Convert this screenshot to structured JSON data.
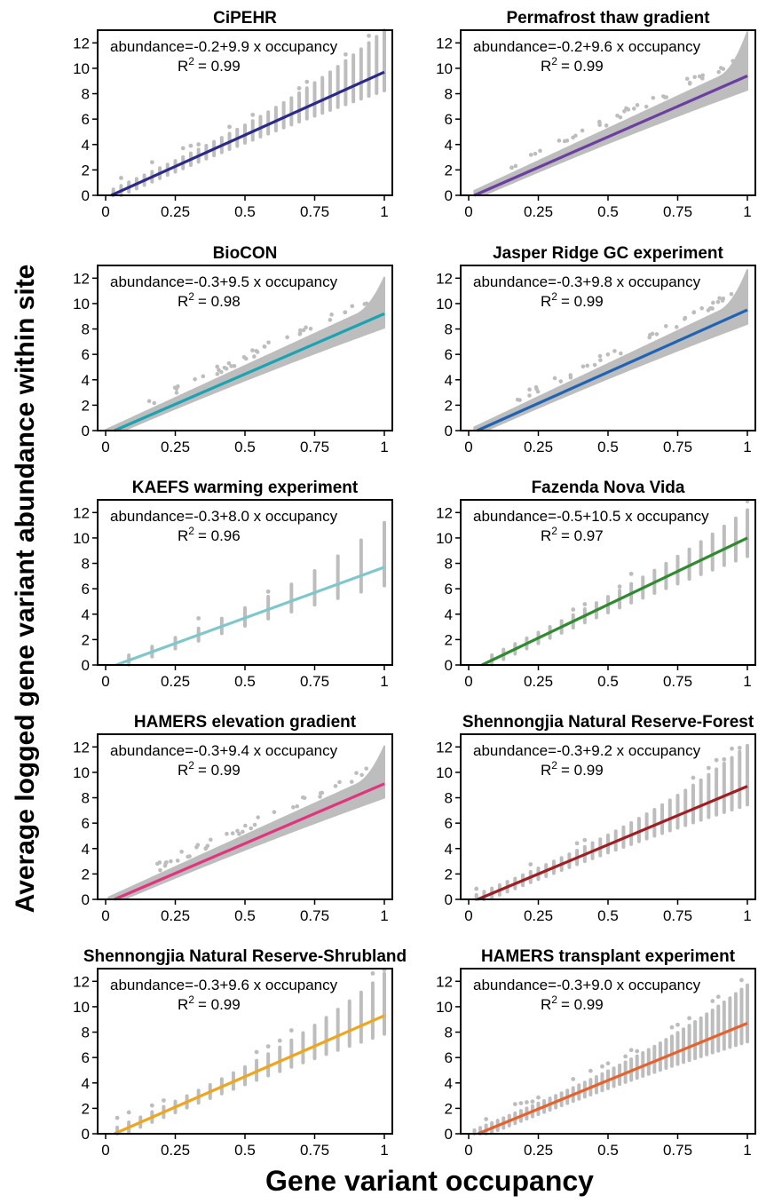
{
  "figure": {
    "ylabel": "Average logged gene variant abundance within site",
    "xlabel": "Gene variant occupancy"
  },
  "chart_data": [
    {
      "type": "scatter",
      "title": "CiPEHR",
      "equation": "abundance=-0.2+9.9 x occupancy",
      "r2_label": "R",
      "r2_value": "= 0.99",
      "intercept": -0.2,
      "slope": 9.9,
      "r2": 0.99,
      "line_color": "#2b2a8c",
      "scatter_color": "#bdbdbd",
      "xlim": [
        0,
        1
      ],
      "ylim": [
        0,
        13
      ],
      "xticks": [
        "0",
        "0.25",
        "0.5",
        "0.75",
        "1"
      ],
      "yticks": [
        "0",
        "2",
        "4",
        "6",
        "8",
        "10",
        "12"
      ],
      "occupancy_levels": 36,
      "xmin_point": 0.02,
      "max_abundance_at_1": 13.0
    },
    {
      "type": "scatter",
      "title": "Permafrost thaw gradient",
      "equation": "abundance=-0.2+9.6 x occupancy",
      "r2_label": "R",
      "r2_value": "= 0.99",
      "intercept": -0.2,
      "slope": 9.6,
      "r2": 0.99,
      "line_color": "#6b3fa0",
      "scatter_color": "#bdbdbd",
      "xlim": [
        0,
        1
      ],
      "ylim": [
        0,
        13
      ],
      "xticks": [
        "0",
        "0.25",
        "0.5",
        "0.75",
        "1"
      ],
      "yticks": [
        "0",
        "2",
        "4",
        "6",
        "8",
        "10",
        "12"
      ],
      "occupancy_levels": 0,
      "xmin_point": 0.02,
      "max_abundance_at_1": 12.8
    },
    {
      "type": "scatter",
      "title": "BioCON",
      "equation": "abundance=-0.3+9.5 x occupancy",
      "r2_label": "R",
      "r2_value": "= 0.98",
      "intercept": -0.3,
      "slope": 9.5,
      "r2": 0.98,
      "line_color": "#1aa3b3",
      "scatter_color": "#bdbdbd",
      "xlim": [
        0,
        1
      ],
      "ylim": [
        0,
        13
      ],
      "xticks": [
        "0",
        "0.25",
        "0.5",
        "0.75",
        "1"
      ],
      "yticks": [
        "0",
        "2",
        "4",
        "6",
        "8",
        "10",
        "12"
      ],
      "occupancy_levels": 0,
      "xmin_point": 0.0,
      "max_abundance_at_1": 12.0
    },
    {
      "type": "scatter",
      "title": "Jasper Ridge GC experiment",
      "equation": "abundance=-0.3+9.8 x occupancy",
      "r2_label": "R",
      "r2_value": "= 0.99",
      "intercept": -0.3,
      "slope": 9.8,
      "r2": 0.99,
      "line_color": "#1f63b4",
      "scatter_color": "#bdbdbd",
      "xlim": [
        0,
        1
      ],
      "ylim": [
        0,
        13
      ],
      "xticks": [
        "0",
        "0.25",
        "0.5",
        "0.75",
        "1"
      ],
      "yticks": [
        "0",
        "2",
        "4",
        "6",
        "8",
        "10",
        "12"
      ],
      "occupancy_levels": 0,
      "xmin_point": 0.02,
      "max_abundance_at_1": 12.6
    },
    {
      "type": "scatter",
      "title": "KAEFS warming experiment",
      "equation": "abundance=-0.3+8.0 x occupancy",
      "r2_label": "R",
      "r2_value": "= 0.96",
      "intercept": -0.3,
      "slope": 8.0,
      "r2": 0.96,
      "line_color": "#7ec8cc",
      "scatter_color": "#bdbdbd",
      "xlim": [
        0,
        1
      ],
      "ylim": [
        0,
        13
      ],
      "xticks": [
        "0",
        "0.25",
        "0.5",
        "0.75",
        "1"
      ],
      "yticks": [
        "0",
        "2",
        "4",
        "6",
        "8",
        "10",
        "12"
      ],
      "occupancy_levels": 12,
      "xmin_point": 0.083,
      "max_abundance_at_1": 11.2
    },
    {
      "type": "scatter",
      "title": "Fazenda Nova Vida",
      "equation": "abundance=-0.5+10.5 x occupancy",
      "r2_label": "R",
      "r2_value": "= 0.97",
      "intercept": -0.5,
      "slope": 10.5,
      "r2": 0.97,
      "line_color": "#2e8b2e",
      "scatter_color": "#bdbdbd",
      "xlim": [
        0,
        1
      ],
      "ylim": [
        0,
        13
      ],
      "xticks": [
        "0",
        "0.25",
        "0.5",
        "0.75",
        "1"
      ],
      "yticks": [
        "0",
        "2",
        "4",
        "6",
        "8",
        "10",
        "12"
      ],
      "occupancy_levels": 24,
      "xmin_point": 0.042,
      "max_abundance_at_1": 12.2
    },
    {
      "type": "scatter",
      "title": "HAMERS elevation gradient",
      "equation": "abundance=-0.3+9.4 x occupancy",
      "r2_label": "R",
      "r2_value": "= 0.99",
      "intercept": -0.3,
      "slope": 9.4,
      "r2": 0.99,
      "line_color": "#e0357e",
      "scatter_color": "#bdbdbd",
      "xlim": [
        0,
        1
      ],
      "ylim": [
        0,
        13
      ],
      "xticks": [
        "0",
        "0.25",
        "0.5",
        "0.75",
        "1"
      ],
      "yticks": [
        "0",
        "2",
        "4",
        "6",
        "8",
        "10",
        "12"
      ],
      "occupancy_levels": 0,
      "xmin_point": 0.01,
      "max_abundance_at_1": 12.0
    },
    {
      "type": "scatter",
      "title": "Shennongjia Natural Reserve-Forest",
      "equation": "abundance=-0.3+9.2 x occupancy",
      "r2_label": "R",
      "r2_value": "= 0.99",
      "intercept": -0.3,
      "slope": 9.2,
      "r2": 0.99,
      "line_color": "#a01d22",
      "scatter_color": "#bdbdbd",
      "xlim": [
        0,
        1
      ],
      "ylim": [
        0,
        13
      ],
      "xticks": [
        "0",
        "0.25",
        "0.5",
        "0.75",
        "1"
      ],
      "yticks": [
        "0",
        "2",
        "4",
        "6",
        "8",
        "10",
        "12"
      ],
      "occupancy_levels": 36,
      "xmin_point": 0.02,
      "max_abundance_at_1": 12.1
    },
    {
      "type": "scatter",
      "title": "Shennongjia Natural Reserve-Shrubland",
      "equation": "abundance=-0.3+9.6 x occupancy",
      "r2_label": "R",
      "r2_value": "= 0.99",
      "intercept": -0.3,
      "slope": 9.6,
      "r2": 0.99,
      "line_color": "#f0a51c",
      "scatter_color": "#bdbdbd",
      "xlim": [
        0,
        1
      ],
      "ylim": [
        0,
        13
      ],
      "xticks": [
        "0",
        "0.25",
        "0.5",
        "0.75",
        "1"
      ],
      "yticks": [
        "0",
        "2",
        "4",
        "6",
        "8",
        "10",
        "12"
      ],
      "occupancy_levels": 24,
      "xmin_point": 0.04,
      "max_abundance_at_1": 12.6
    },
    {
      "type": "scatter",
      "title": "HAMERS transplant experiment",
      "equation": "abundance=-0.3+9.0 x occupancy",
      "r2_label": "R",
      "r2_value": "= 0.99",
      "intercept": -0.3,
      "slope": 9.0,
      "r2": 0.99,
      "line_color": "#e8612c",
      "scatter_color": "#bdbdbd",
      "xlim": [
        0,
        1
      ],
      "ylim": [
        0,
        13
      ],
      "xticks": [
        "0",
        "0.25",
        "0.5",
        "0.75",
        "1"
      ],
      "yticks": [
        "0",
        "2",
        "4",
        "6",
        "8",
        "10",
        "12"
      ],
      "occupancy_levels": 48,
      "xmin_point": 0.02,
      "max_abundance_at_1": 11.7
    }
  ]
}
